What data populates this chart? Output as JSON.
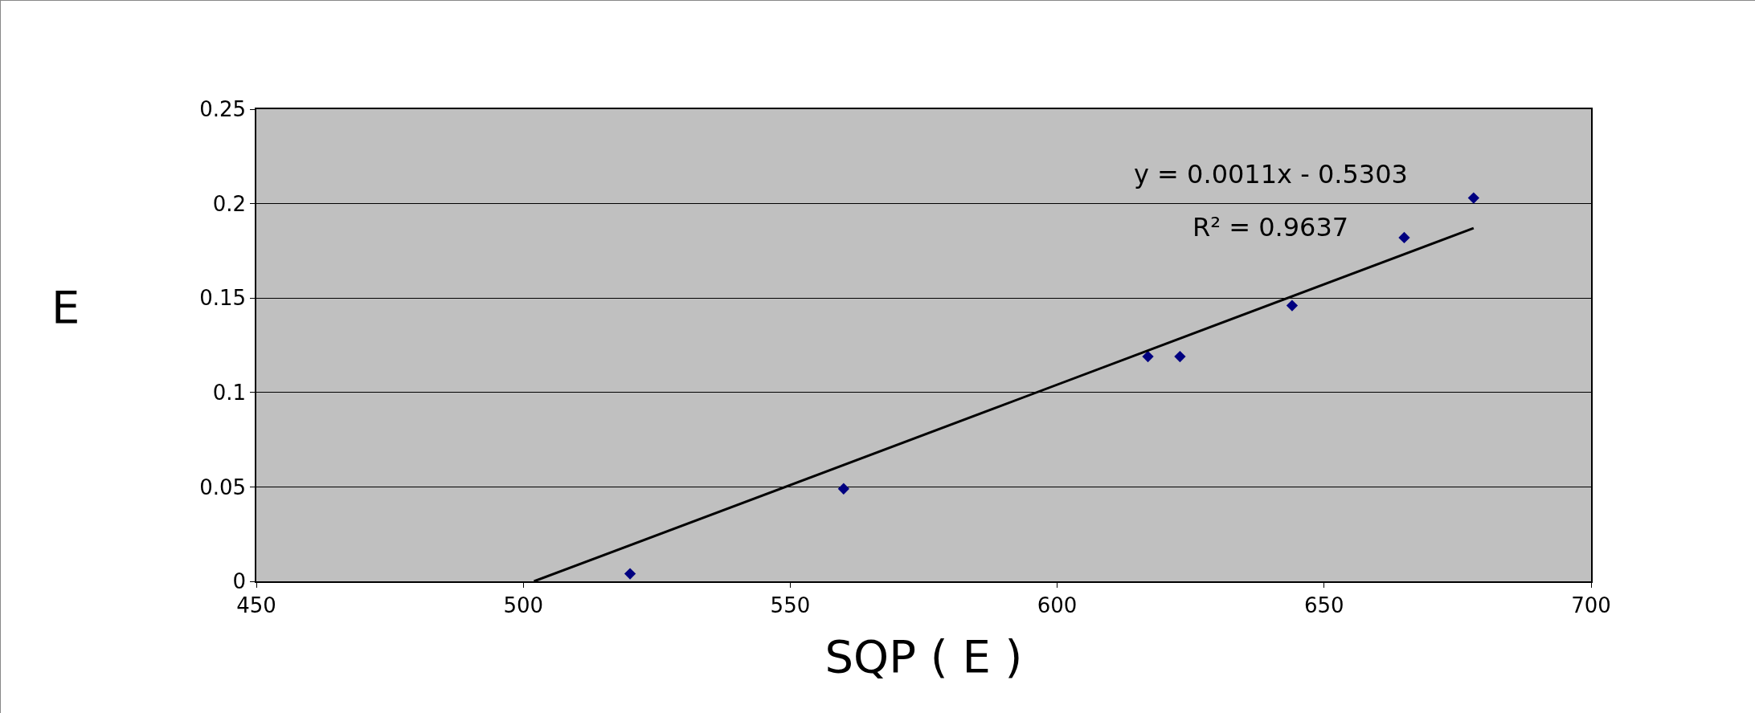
{
  "chart_data": {
    "type": "scatter",
    "xlabel": "SQP ( E )",
    "ylabel": "E",
    "xlim": [
      450,
      700
    ],
    "xticks": [
      450,
      500,
      550,
      600,
      650,
      700
    ],
    "ylim": [
      0,
      0.25
    ],
    "yticks": [
      0,
      0.05,
      0.1,
      0.15,
      0.2,
      0.25
    ],
    "grid": "y",
    "marker": "diamond",
    "series": [
      {
        "color": "#000080",
        "x": [
          520,
          560,
          617,
          623,
          644,
          665,
          678
        ],
        "values": [
          0.004,
          0.049,
          0.119,
          0.119,
          0.146,
          0.182,
          0.203
        ]
      },
      {
        "type": "line",
        "marker": "none",
        "color": "#000000",
        "x": [
          502,
          678
        ],
        "values": [
          0,
          0.187
        ]
      }
    ],
    "annotations": [
      "y = 0.0011x - 0.5303",
      "R² = 0.9637"
    ]
  }
}
